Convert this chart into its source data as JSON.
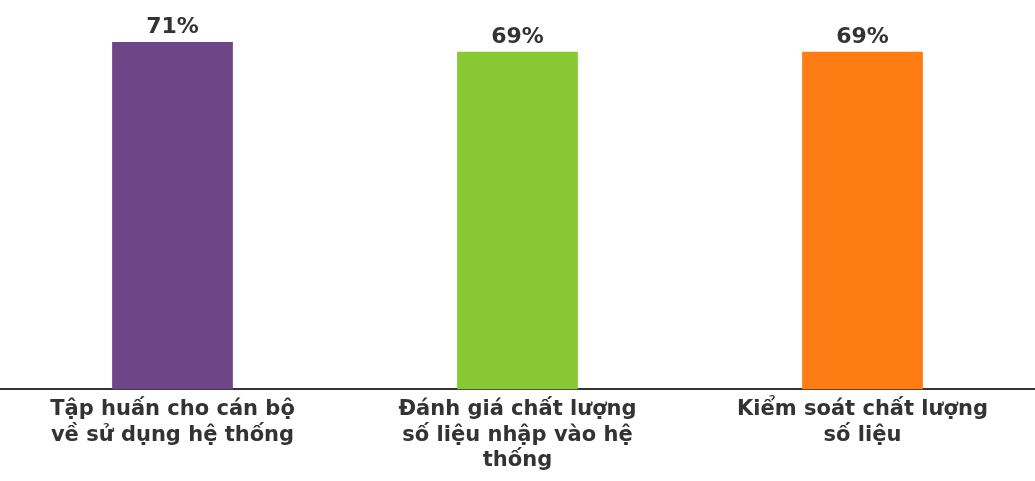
{
  "chart_data": {
    "type": "bar",
    "categories": [
      "Tập huấn cho cán bộ về sử dụng hệ thống",
      "Đánh giá chất lượng số liệu nhập vào hệ thống",
      "Kiểm soát chất lượng số liệu"
    ],
    "values": [
      71,
      69,
      69
    ],
    "colors": [
      "#6e4587",
      "#88c832",
      "#fd7d14"
    ],
    "value_labels": [
      "71%",
      "69%",
      "69%"
    ],
    "ylim": [
      0,
      71
    ],
    "tick_labels": "x",
    "grid": false,
    "legend": false
  }
}
